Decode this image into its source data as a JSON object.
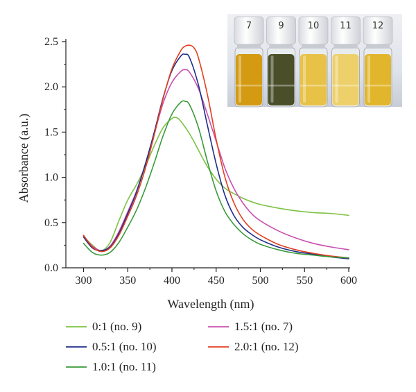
{
  "chart_data": {
    "type": "line",
    "xlabel": "Wavelength (nm)",
    "ylabel": "Absorbance (a.u.)",
    "xlim": [
      280,
      600
    ],
    "ylim": [
      0,
      2.5
    ],
    "xticks": [
      300,
      350,
      400,
      450,
      500,
      550,
      600
    ],
    "yticks": [
      0.0,
      0.5,
      1.0,
      1.5,
      2.0,
      2.5
    ],
    "xtick_labels": [
      "300",
      "350",
      "400",
      "450",
      "500",
      "550",
      "600"
    ],
    "ytick_labels": [
      "0.0",
      "0.5",
      "1.0",
      "1.5",
      "2.0",
      "2.5"
    ],
    "grid": false,
    "legend_position": "bottom",
    "series": [
      {
        "name": "0:1 (no. 9)",
        "color": "#7cc243",
        "x": [
          300,
          310,
          320,
          330,
          340,
          350,
          360,
          370,
          380,
          390,
          400,
          405,
          410,
          420,
          430,
          440,
          450,
          460,
          470,
          480,
          490,
          500,
          520,
          540,
          560,
          580,
          600
        ],
        "y": [
          0.35,
          0.25,
          0.19,
          0.28,
          0.52,
          0.75,
          0.92,
          1.12,
          1.35,
          1.55,
          1.65,
          1.66,
          1.62,
          1.48,
          1.3,
          1.12,
          0.98,
          0.88,
          0.82,
          0.77,
          0.73,
          0.7,
          0.66,
          0.63,
          0.61,
          0.6,
          0.58
        ]
      },
      {
        "name": "1.5:1 (no. 7)",
        "color": "#c94fb0",
        "x": [
          300,
          310,
          320,
          330,
          340,
          350,
          360,
          370,
          380,
          390,
          400,
          410,
          415,
          420,
          430,
          440,
          450,
          460,
          470,
          480,
          490,
          500,
          520,
          540,
          560,
          580,
          600
        ],
        "y": [
          0.35,
          0.24,
          0.19,
          0.24,
          0.4,
          0.62,
          0.85,
          1.15,
          1.48,
          1.82,
          2.05,
          2.17,
          2.19,
          2.16,
          1.98,
          1.7,
          1.4,
          1.1,
          0.88,
          0.72,
          0.6,
          0.52,
          0.41,
          0.33,
          0.27,
          0.23,
          0.2
        ]
      },
      {
        "name": "0.5:1 (no. 10)",
        "color": "#1f2d8a",
        "x": [
          300,
          310,
          320,
          330,
          340,
          350,
          360,
          370,
          380,
          390,
          400,
          410,
          415,
          420,
          430,
          440,
          450,
          460,
          470,
          480,
          490,
          500,
          520,
          540,
          560,
          580,
          600
        ],
        "y": [
          0.34,
          0.22,
          0.19,
          0.23,
          0.38,
          0.6,
          0.84,
          1.15,
          1.5,
          1.88,
          2.18,
          2.34,
          2.36,
          2.32,
          2.02,
          1.58,
          1.15,
          0.8,
          0.58,
          0.45,
          0.37,
          0.31,
          0.23,
          0.18,
          0.15,
          0.12,
          0.1
        ]
      },
      {
        "name": "2.0:1 (no. 12)",
        "color": "#e2401f",
        "x": [
          300,
          310,
          320,
          330,
          340,
          350,
          360,
          370,
          380,
          390,
          400,
          410,
          415,
          420,
          425,
          430,
          440,
          450,
          460,
          470,
          480,
          490,
          500,
          520,
          540,
          560,
          580,
          600
        ],
        "y": [
          0.36,
          0.23,
          0.18,
          0.22,
          0.36,
          0.57,
          0.8,
          1.1,
          1.47,
          1.87,
          2.2,
          2.4,
          2.45,
          2.46,
          2.43,
          2.32,
          1.92,
          1.42,
          1.0,
          0.72,
          0.54,
          0.43,
          0.36,
          0.26,
          0.2,
          0.16,
          0.13,
          0.11
        ]
      },
      {
        "name": "1.0:1 (no. 11)",
        "color": "#3a9a3a",
        "x": [
          300,
          310,
          320,
          330,
          340,
          350,
          360,
          370,
          380,
          390,
          400,
          410,
          415,
          420,
          430,
          440,
          450,
          460,
          470,
          480,
          490,
          500,
          520,
          540,
          560,
          580,
          600
        ],
        "y": [
          0.27,
          0.17,
          0.14,
          0.17,
          0.28,
          0.45,
          0.64,
          0.88,
          1.16,
          1.46,
          1.7,
          1.83,
          1.84,
          1.8,
          1.55,
          1.18,
          0.85,
          0.62,
          0.48,
          0.38,
          0.31,
          0.26,
          0.2,
          0.16,
          0.14,
          0.12,
          0.11
        ]
      }
    ],
    "legend_layout": [
      [
        "0:1 (no. 9)",
        "1.5:1 (no. 7)"
      ],
      [
        "0.5:1 (no. 10)",
        "2.0:1 (no. 12)"
      ],
      [
        "1.0:1 (no. 11)"
      ]
    ]
  },
  "inset_photo": {
    "vials": [
      {
        "cap_label": "7",
        "liquid_color": "#d39a12"
      },
      {
        "cap_label": "9",
        "liquid_color": "#4a4f2a"
      },
      {
        "cap_label": "10",
        "liquid_color": "#e7c247"
      },
      {
        "cap_label": "11",
        "liquid_color": "#edd06a"
      },
      {
        "cap_label": "12",
        "liquid_color": "#e2b62c"
      }
    ]
  }
}
